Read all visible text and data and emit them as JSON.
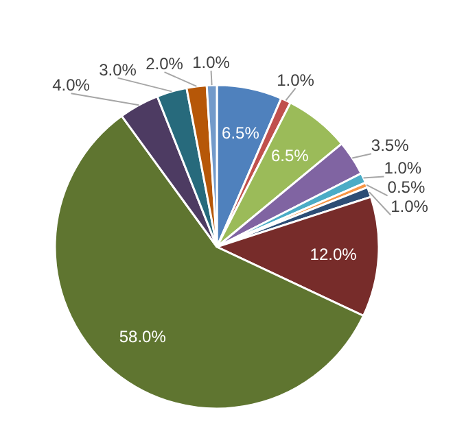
{
  "chart_data": {
    "type": "pie",
    "categories": [
      null,
      null,
      null,
      null,
      null,
      null,
      null,
      null,
      null,
      null,
      null,
      null,
      null
    ],
    "values": [
      6.5,
      1.0,
      6.5,
      3.5,
      1.0,
      0.5,
      1.0,
      12.0,
      58.0,
      4.0,
      3.0,
      2.0,
      1.0
    ],
    "colors": [
      "#4f81bd",
      "#c0504d",
      "#9bbb59",
      "#8064a2",
      "#4bacc6",
      "#f79646",
      "#2c4d75",
      "#772c2a",
      "#5f7530",
      "#4d3b62",
      "#276a7c",
      "#b65708",
      "#729aca"
    ],
    "value_labels": [
      "6.5%",
      "1.0%",
      "6.5%",
      "3.5%",
      "1.0%",
      "0.5%",
      "1.0%",
      "12.0%",
      "58.0%",
      "4.0%",
      "3.0%",
      "2.0%",
      "1.0%"
    ]
  }
}
